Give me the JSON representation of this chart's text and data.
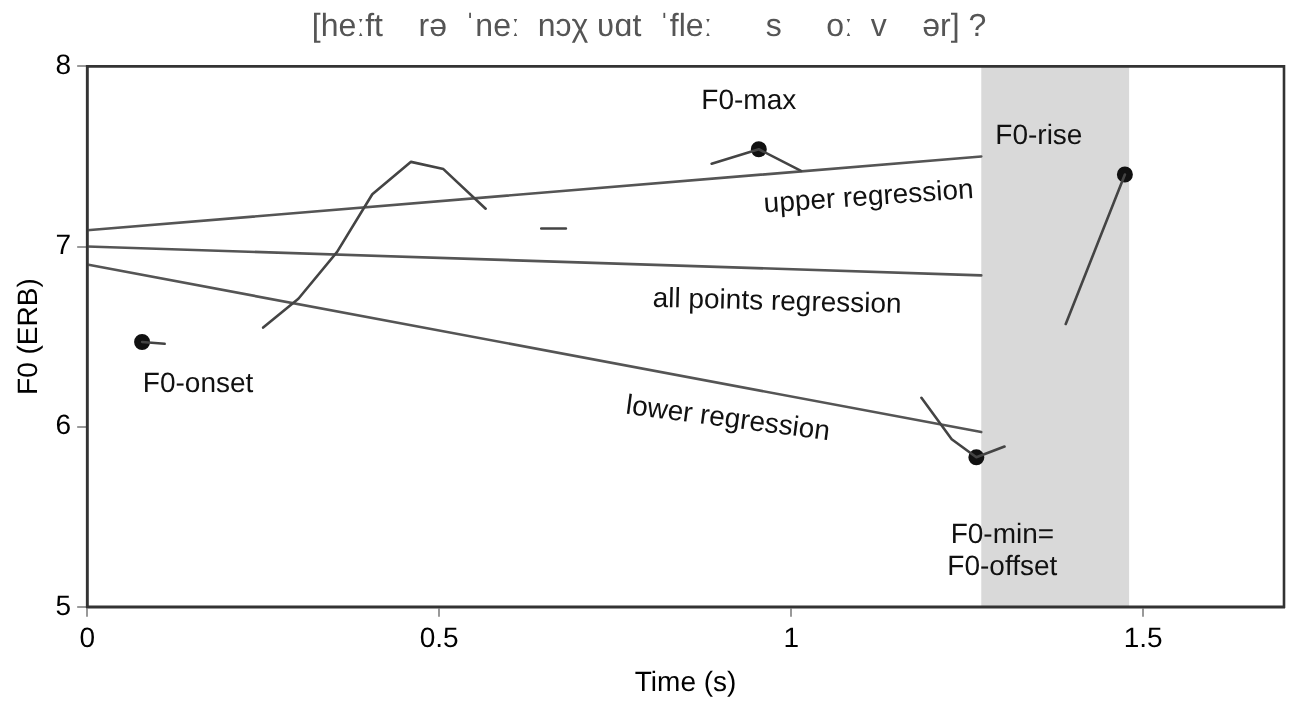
{
  "chart_data": {
    "type": "line",
    "title": "[heːft    rə  ˈneː  nɔχ ʋɑt  ˈfleː      s     oː  v    ər] ?",
    "xlabel": "Time (s)",
    "ylabel": "F0 (ERB)",
    "xlim": [
      0,
      1.7
    ],
    "xticks": [
      0,
      0.5,
      1,
      1.5
    ],
    "ylim": [
      5,
      8
    ],
    "yticks": [
      5,
      6,
      7,
      8
    ],
    "grid": false,
    "legend": false,
    "bands": [
      {
        "axis": "x",
        "from": 1.27,
        "to": 1.48,
        "color": "#d9d9d9"
      }
    ],
    "series": [
      {
        "type": "line",
        "color": "#444444",
        "marker": "none",
        "x": [
          0.078,
          0.11,
          0.18,
          0.25,
          0.3,
          0.355,
          0.405,
          0.46,
          0.506,
          0.566,
          0.6,
          0.645,
          0.68,
          0.8,
          0.887,
          0.954,
          1.014,
          1.1,
          1.185,
          1.228,
          1.263,
          1.303,
          1.35,
          1.39,
          1.474
        ],
        "values": [
          6.47,
          6.46,
          null,
          6.55,
          6.71,
          6.97,
          7.29,
          7.47,
          7.43,
          7.21,
          null,
          7.1,
          7.1,
          null,
          7.46,
          7.54,
          7.42,
          null,
          6.16,
          5.93,
          5.83,
          5.89,
          null,
          6.57,
          7.4
        ]
      },
      {
        "type": "line",
        "color": "#555555",
        "marker": "none",
        "x": [
          0,
          1.27
        ],
        "values": [
          7.09,
          7.5
        ]
      },
      {
        "type": "line",
        "color": "#555555",
        "marker": "none",
        "x": [
          0,
          1.27
        ],
        "values": [
          7.0,
          6.84
        ]
      },
      {
        "type": "line",
        "color": "#555555",
        "marker": "none",
        "x": [
          0,
          1.27
        ],
        "values": [
          6.9,
          5.97
        ]
      },
      {
        "type": "scatter",
        "color": "#111111",
        "marker": "circle",
        "x": [
          0.078,
          0.954,
          1.263,
          1.474
        ],
        "values": [
          6.47,
          7.54,
          5.83,
          7.4
        ]
      }
    ],
    "annotations": [
      {
        "text": "F0-onset",
        "x": 0.078,
        "y": 6.47
      },
      {
        "text": "F0-max",
        "x": 0.954,
        "y": 7.54
      },
      {
        "text": "upper regression",
        "x": 1.11,
        "y": 7.45
      },
      {
        "text": "all points regression",
        "x": 0.98,
        "y": 6.88
      },
      {
        "text": "lower regression",
        "x": 0.91,
        "y": 6.23
      },
      {
        "text": "F0-min=\nF0-offset",
        "x": 1.263,
        "y": 5.83
      },
      {
        "text": "F0-rise",
        "x": 1.474,
        "y": 7.4
      }
    ]
  }
}
